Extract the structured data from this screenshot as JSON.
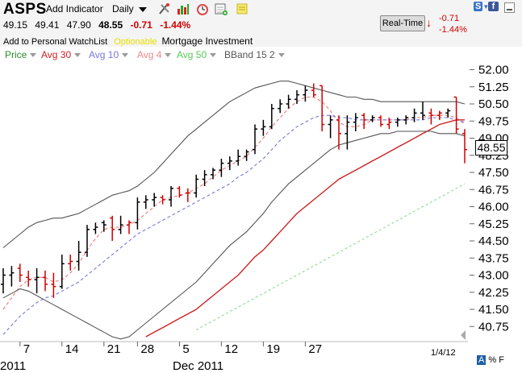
{
  "toolbar": {
    "symbol": "ASPS",
    "add_indicator_label": "Add Indicator",
    "timeframe_label": "Daily",
    "icons": [
      "drawing-tools-icon",
      "chart-type-icon",
      "alarm-clock-icon",
      "add-chart-icon",
      "notes-icon"
    ]
  },
  "quote": {
    "open": "49.15",
    "high": "49.41",
    "low": "47.90",
    "last": "48.55",
    "change": "-0.71",
    "change_pct": "-1.44%"
  },
  "links": {
    "watchlist": "Add to Personal WatchList",
    "optionable": "Optionable",
    "industry": "Mortgage Investment"
  },
  "realtime": {
    "button_label": "Real-Time",
    "change": "-0.71",
    "change_pct": "-1.44%"
  },
  "corner": {
    "s_label": "S",
    "f_label": "f"
  },
  "legend": [
    {
      "label": "Price",
      "color": "#2e8b2e"
    },
    {
      "label": "Avg 30",
      "color": "#cc2222"
    },
    {
      "label": "Avg 10",
      "color": "#7777dd"
    },
    {
      "label": "Avg 4",
      "color": "#ee8888"
    },
    {
      "label": "Avg 50",
      "color": "#55cc55"
    },
    {
      "label": "BBand 15 2",
      "color": "#555555"
    }
  ],
  "price_display": "48.55",
  "last_date": "1/4/12",
  "footer": {
    "a": "A",
    "pct": "%",
    "f": "F"
  },
  "chart_data": {
    "type": "bar",
    "ylim": [
      40.3,
      52.3
    ],
    "y_ticks": [
      "52.00",
      "51.25",
      "50.50",
      "49.75",
      "49.00",
      "48.25",
      "47.50",
      "46.75",
      "46.00",
      "45.25",
      "44.50",
      "43.75",
      "43.00",
      "42.25",
      "41.50",
      "40.75"
    ],
    "x_ticks": [
      {
        "label": "7",
        "index": 2
      },
      {
        "label": "14",
        "index": 7
      },
      {
        "label": "21",
        "index": 12
      },
      {
        "label": "28",
        "index": 16
      },
      {
        "label": "5",
        "index": 21
      },
      {
        "label": "12",
        "index": 26
      },
      {
        "label": "19",
        "index": 31
      },
      {
        "label": "27",
        "index": 36
      }
    ],
    "month_labels": [
      {
        "label": "2011",
        "index": 0
      },
      {
        "label": "Dec 2011",
        "index": 20
      }
    ],
    "ohlc": [
      {
        "o": 42.6,
        "h": 43.3,
        "l": 42.2,
        "c": 43.0,
        "up": true
      },
      {
        "o": 43.0,
        "h": 43.4,
        "l": 42.5,
        "c": 43.1,
        "up": true
      },
      {
        "o": 43.3,
        "h": 43.5,
        "l": 42.7,
        "c": 43.0,
        "up": false
      },
      {
        "o": 42.9,
        "h": 43.2,
        "l": 42.5,
        "c": 42.8,
        "up": false
      },
      {
        "o": 42.8,
        "h": 43.3,
        "l": 42.2,
        "c": 42.9,
        "up": true
      },
      {
        "o": 42.9,
        "h": 43.2,
        "l": 42.3,
        "c": 42.6,
        "up": false
      },
      {
        "o": 42.6,
        "h": 43.1,
        "l": 42.0,
        "c": 42.5,
        "up": false
      },
      {
        "o": 42.5,
        "h": 43.9,
        "l": 42.4,
        "c": 43.5,
        "up": true
      },
      {
        "o": 43.5,
        "h": 43.9,
        "l": 43.2,
        "c": 43.6,
        "up": false
      },
      {
        "o": 43.6,
        "h": 44.5,
        "l": 43.2,
        "c": 44.0,
        "up": true
      },
      {
        "o": 44.0,
        "h": 45.2,
        "l": 43.8,
        "c": 45.0,
        "up": true
      },
      {
        "o": 45.0,
        "h": 45.3,
        "l": 44.8,
        "c": 45.1,
        "up": true
      },
      {
        "o": 45.3,
        "h": 45.4,
        "l": 44.9,
        "c": 45.2,
        "up": true
      },
      {
        "o": 45.5,
        "h": 45.6,
        "l": 44.5,
        "c": 45.0,
        "up": false
      },
      {
        "o": 45.0,
        "h": 45.6,
        "l": 44.8,
        "c": 45.2,
        "up": true
      },
      {
        "o": 45.2,
        "h": 45.4,
        "l": 44.8,
        "c": 45.3,
        "up": false
      },
      {
        "o": 45.3,
        "h": 46.4,
        "l": 45.0,
        "c": 46.2,
        "up": true
      },
      {
        "o": 46.2,
        "h": 46.5,
        "l": 45.9,
        "c": 46.3,
        "up": true
      },
      {
        "o": 46.3,
        "h": 46.6,
        "l": 46.0,
        "c": 46.4,
        "up": true
      },
      {
        "o": 46.4,
        "h": 46.5,
        "l": 46.1,
        "c": 46.3,
        "up": false
      },
      {
        "o": 46.3,
        "h": 46.9,
        "l": 46.0,
        "c": 46.8,
        "up": true
      },
      {
        "o": 46.8,
        "h": 46.9,
        "l": 46.4,
        "c": 46.5,
        "up": false
      },
      {
        "o": 46.6,
        "h": 46.8,
        "l": 46.2,
        "c": 46.6,
        "up": false
      },
      {
        "o": 46.6,
        "h": 47.4,
        "l": 46.4,
        "c": 47.2,
        "up": true
      },
      {
        "o": 47.2,
        "h": 47.6,
        "l": 46.9,
        "c": 47.4,
        "up": true
      },
      {
        "o": 47.4,
        "h": 47.7,
        "l": 47.2,
        "c": 47.6,
        "up": true
      },
      {
        "o": 47.6,
        "h": 48.1,
        "l": 47.3,
        "c": 47.9,
        "up": true
      },
      {
        "o": 47.9,
        "h": 48.2,
        "l": 47.6,
        "c": 48.0,
        "up": true
      },
      {
        "o": 48.0,
        "h": 48.5,
        "l": 47.8,
        "c": 48.2,
        "up": true
      },
      {
        "o": 48.2,
        "h": 48.5,
        "l": 48.0,
        "c": 48.4,
        "up": true
      },
      {
        "o": 48.5,
        "h": 49.6,
        "l": 48.3,
        "c": 49.4,
        "up": true
      },
      {
        "o": 49.4,
        "h": 49.8,
        "l": 49.1,
        "c": 49.5,
        "up": true
      },
      {
        "o": 49.5,
        "h": 50.5,
        "l": 49.4,
        "c": 50.3,
        "up": true
      },
      {
        "o": 50.3,
        "h": 50.7,
        "l": 50.1,
        "c": 50.5,
        "up": true
      },
      {
        "o": 50.5,
        "h": 50.9,
        "l": 50.3,
        "c": 50.7,
        "up": true
      },
      {
        "o": 50.7,
        "h": 51.1,
        "l": 50.5,
        "c": 50.9,
        "up": true
      },
      {
        "o": 50.9,
        "h": 51.3,
        "l": 50.6,
        "c": 51.1,
        "up": true
      },
      {
        "o": 51.1,
        "h": 51.4,
        "l": 50.8,
        "c": 50.9,
        "up": false
      },
      {
        "o": 51.3,
        "h": 51.3,
        "l": 49.3,
        "c": 49.6,
        "up": false
      },
      {
        "o": 49.6,
        "h": 50.0,
        "l": 49.0,
        "c": 49.8,
        "up": true
      },
      {
        "o": 49.8,
        "h": 50.0,
        "l": 48.5,
        "c": 49.2,
        "up": false
      },
      {
        "o": 49.2,
        "h": 50.0,
        "l": 48.5,
        "c": 49.7,
        "up": true
      },
      {
        "o": 49.7,
        "h": 50.1,
        "l": 49.3,
        "c": 49.9,
        "up": true
      },
      {
        "o": 50.0,
        "h": 50.1,
        "l": 49.4,
        "c": 49.8,
        "up": false
      },
      {
        "o": 49.8,
        "h": 50.0,
        "l": 49.7,
        "c": 49.9,
        "up": true
      },
      {
        "o": 49.9,
        "h": 50.0,
        "l": 49.5,
        "c": 49.6,
        "up": false
      },
      {
        "o": 49.6,
        "h": 49.9,
        "l": 49.4,
        "c": 49.7,
        "up": false
      },
      {
        "o": 49.7,
        "h": 49.9,
        "l": 49.5,
        "c": 49.8,
        "up": true
      },
      {
        "o": 49.8,
        "h": 50.0,
        "l": 49.6,
        "c": 49.9,
        "up": true
      },
      {
        "o": 49.9,
        "h": 50.3,
        "l": 49.7,
        "c": 50.1,
        "up": true
      },
      {
        "o": 50.1,
        "h": 50.6,
        "l": 49.8,
        "c": 50.0,
        "up": true
      },
      {
        "o": 50.1,
        "h": 50.3,
        "l": 49.6,
        "c": 50.0,
        "up": false
      },
      {
        "o": 50.0,
        "h": 50.2,
        "l": 49.8,
        "c": 50.1,
        "up": false
      },
      {
        "o": 50.1,
        "h": 50.3,
        "l": 49.9,
        "c": 50.2,
        "up": true
      },
      {
        "o": 50.8,
        "h": 50.8,
        "l": 49.2,
        "c": 49.4,
        "up": false
      },
      {
        "o": 49.2,
        "h": 49.4,
        "l": 47.9,
        "c": 48.5,
        "up": false
      }
    ],
    "series": [
      {
        "name": "Avg 4",
        "color": "#ee7777",
        "dash": "4,3",
        "values": [
          41.5,
          42.0,
          42.5,
          42.8,
          42.9,
          42.9,
          42.7,
          42.8,
          43.1,
          43.5,
          44.1,
          44.6,
          45.0,
          45.1,
          45.1,
          45.2,
          45.4,
          45.7,
          46.0,
          46.3,
          46.4,
          46.5,
          46.6,
          46.8,
          47.0,
          47.3,
          47.6,
          47.8,
          48.0,
          48.2,
          48.6,
          49.0,
          49.5,
          49.9,
          50.3,
          50.6,
          50.8,
          50.8,
          50.6,
          50.2,
          49.7,
          49.5,
          49.5,
          49.6,
          49.8,
          49.8,
          49.8,
          49.8,
          49.8,
          49.9,
          49.9,
          50.0,
          50.0,
          50.0,
          49.9,
          49.6
        ]
      },
      {
        "name": "Avg 10",
        "color": "#7777dd",
        "dash": "4,3",
        "values": [
          40.4,
          40.8,
          41.2,
          41.5,
          41.8,
          42.0,
          42.1,
          42.3,
          42.5,
          42.7,
          43.0,
          43.3,
          43.6,
          43.9,
          44.2,
          44.5,
          44.8,
          45.0,
          45.2,
          45.4,
          45.6,
          45.8,
          46.0,
          46.2,
          46.4,
          46.6,
          46.8,
          47.0,
          47.3,
          47.5,
          47.8,
          48.1,
          48.5,
          48.9,
          49.2,
          49.5,
          49.7,
          49.9,
          50.0,
          50.0,
          49.9,
          49.9,
          49.8,
          49.8,
          49.8,
          49.8,
          49.8,
          49.8,
          49.8,
          49.8,
          49.8,
          49.9,
          49.9,
          49.9,
          49.8,
          49.7
        ]
      },
      {
        "name": "Avg 30",
        "color": "#cc2222",
        "dash": "",
        "values": [
          null,
          null,
          null,
          null,
          null,
          null,
          null,
          null,
          null,
          null,
          null,
          null,
          null,
          null,
          null,
          null,
          null,
          40.3,
          40.5,
          40.7,
          40.9,
          41.1,
          41.3,
          41.5,
          41.8,
          42.1,
          42.4,
          42.7,
          43.0,
          43.4,
          43.8,
          44.1,
          44.5,
          44.9,
          45.3,
          45.7,
          46.0,
          46.3,
          46.6,
          46.9,
          47.2,
          47.4,
          47.6,
          47.8,
          48.0,
          48.2,
          48.4,
          48.6,
          48.8,
          49.0,
          49.2,
          49.4,
          49.6,
          49.7,
          49.8,
          49.8
        ]
      },
      {
        "name": "Avg 50",
        "color": "#88dd88",
        "dash": "3,3",
        "values": [
          null,
          null,
          null,
          null,
          null,
          null,
          null,
          null,
          null,
          null,
          null,
          null,
          null,
          null,
          null,
          null,
          null,
          null,
          null,
          null,
          null,
          null,
          null,
          40.6,
          40.8,
          41.0,
          41.2,
          41.4,
          41.6,
          41.8,
          42.0,
          42.2,
          42.4,
          42.6,
          42.8,
          43.0,
          43.2,
          43.4,
          43.6,
          43.8,
          44.0,
          44.2,
          44.4,
          44.6,
          44.8,
          45.0,
          45.2,
          45.4,
          45.6,
          45.8,
          46.0,
          46.2,
          46.4,
          46.6,
          46.8,
          47.0
        ]
      },
      {
        "name": "BBand 15 2 upper",
        "color": "#555555",
        "dash": "",
        "values": [
          44.2,
          44.5,
          44.8,
          45.1,
          45.3,
          45.4,
          45.5,
          45.5,
          45.6,
          45.7,
          45.9,
          46.1,
          46.3,
          46.5,
          46.6,
          46.7,
          46.9,
          47.2,
          47.5,
          47.9,
          48.3,
          48.7,
          49.1,
          49.4,
          49.7,
          50.0,
          50.3,
          50.6,
          50.8,
          51.0,
          51.2,
          51.3,
          51.4,
          51.5,
          51.5,
          51.4,
          51.3,
          51.2,
          51.1,
          51.0,
          50.9,
          50.8,
          50.8,
          50.7,
          50.7,
          50.6,
          50.6,
          50.6,
          50.6,
          50.6,
          50.6,
          50.6,
          50.6,
          50.6,
          50.6,
          50.5
        ]
      },
      {
        "name": "BBand 15 2 lower",
        "color": "#555555",
        "dash": "",
        "values": [
          42.0,
          42.2,
          42.4,
          42.3,
          42.1,
          41.9,
          41.7,
          41.5,
          41.3,
          41.1,
          40.9,
          40.7,
          40.5,
          40.3,
          40.2,
          40.3,
          40.6,
          40.9,
          41.2,
          41.5,
          41.8,
          42.1,
          42.4,
          42.7,
          43.1,
          43.5,
          43.9,
          44.3,
          44.6,
          44.9,
          45.3,
          45.7,
          46.2,
          46.6,
          47.0,
          47.3,
          47.6,
          47.9,
          48.2,
          48.5,
          48.7,
          48.8,
          48.9,
          49.0,
          49.1,
          49.2,
          49.2,
          49.3,
          49.3,
          49.3,
          49.3,
          49.3,
          49.2,
          49.2,
          49.2,
          49.1
        ]
      }
    ]
  }
}
